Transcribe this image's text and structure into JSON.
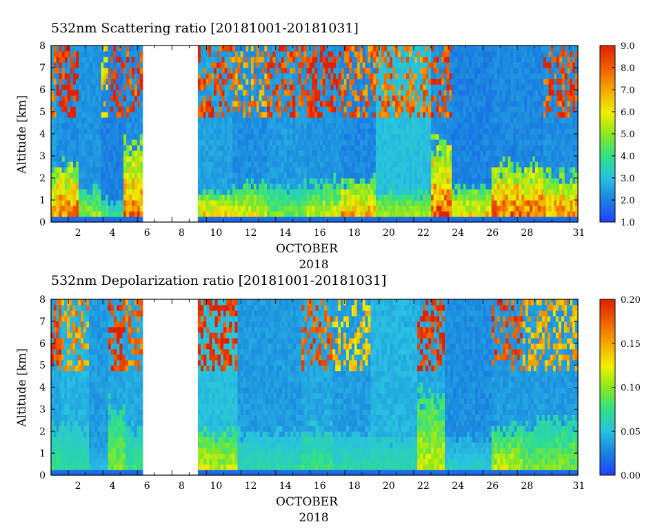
{
  "chart_data": [
    {
      "type": "heatmap",
      "title": "532nm Scattering ratio [20181001-20181031]",
      "ylabel": "Altitude [km]",
      "xlabel": "OCTOBER",
      "xlabel2": "2018",
      "xlim": [
        1,
        31.5
      ],
      "ylim": [
        0,
        8
      ],
      "x_ticks": [
        "2",
        "4",
        "6",
        "8",
        "10",
        "12",
        "14",
        "16",
        "18",
        "20",
        "22",
        "24",
        "26",
        "28",
        "31"
      ],
      "y_ticks": [
        "0",
        "1",
        "2",
        "3",
        "4",
        "5",
        "6",
        "7",
        "8"
      ],
      "colorbar": {
        "min": 1.0,
        "max": 9.0,
        "ticks": [
          "1.0",
          "2.0",
          "3.0",
          "4.0",
          "5.0",
          "6.0",
          "7.0",
          "8.0",
          "9.0"
        ]
      },
      "data_gap_days": [
        6.3,
        9.5
      ],
      "segments": [
        {
          "x0": 1.0,
          "x1": 1.3,
          "bg": 2.5,
          "pbl_top": 2.2,
          "pbl_val": 7.5,
          "cloud_top": 8,
          "cloud_val": 8.0
        },
        {
          "x0": 1.3,
          "x1": 2.6,
          "bg": 2.2,
          "pbl_top": 2.5,
          "pbl_val": 8.5,
          "cloud_top": 8,
          "cloud_val": 9.0
        },
        {
          "x0": 2.6,
          "x1": 3.9,
          "bg": 2.3,
          "pbl_top": 1.3,
          "pbl_val": 5.5,
          "cloud_top": 0,
          "cloud_val": 0
        },
        {
          "x0": 3.9,
          "x1": 4.3,
          "bg": 2.0,
          "pbl_top": 1.0,
          "pbl_val": 5.0,
          "cloud_top": 8,
          "cloud_val": 6.5
        },
        {
          "x0": 4.3,
          "x1": 5.2,
          "bg": 2.0,
          "pbl_top": 0.8,
          "pbl_val": 4.5,
          "cloud_top": 8,
          "cloud_val": 9.0
        },
        {
          "x0": 5.2,
          "x1": 6.3,
          "bg": 2.2,
          "pbl_top": 3.5,
          "pbl_val": 8.0,
          "cloud_top": 8,
          "cloud_val": 8.5
        },
        {
          "x0": 9.5,
          "x1": 11.5,
          "bg": 2.5,
          "pbl_top": 1.2,
          "pbl_val": 7.0,
          "cloud_top": 6,
          "cloud_val": 8.5
        },
        {
          "x0": 11.5,
          "x1": 13.5,
          "bg": 2.2,
          "pbl_top": 1.6,
          "pbl_val": 6.5,
          "cloud_top": 8,
          "cloud_val": 7.5
        },
        {
          "x0": 13.5,
          "x1": 15.8,
          "bg": 2.4,
          "pbl_top": 1.5,
          "pbl_val": 5.0,
          "cloud_top": 8,
          "cloud_val": 8.5
        },
        {
          "x0": 15.8,
          "x1": 17.8,
          "bg": 2.3,
          "pbl_top": 1.7,
          "pbl_val": 6.0,
          "cloud_top": 8,
          "cloud_val": 9.0
        },
        {
          "x0": 17.8,
          "x1": 19.8,
          "bg": 2.1,
          "pbl_top": 1.8,
          "pbl_val": 7.5,
          "cloud_top": 8,
          "cloud_val": 8.0
        },
        {
          "x0": 19.8,
          "x1": 23.0,
          "bg": 3.0,
          "pbl_top": 1.2,
          "pbl_val": 5.5,
          "cloud_top": 8,
          "cloud_val": 8.0
        },
        {
          "x0": 23.0,
          "x1": 24.2,
          "bg": 2.2,
          "pbl_top": 3.5,
          "pbl_val": 8.5,
          "cloud_top": 8,
          "cloud_val": 8.5
        },
        {
          "x0": 24.2,
          "x1": 26.5,
          "bg": 2.0,
          "pbl_top": 1.5,
          "pbl_val": 7.0,
          "cloud_top": 0,
          "cloud_val": 0
        },
        {
          "x0": 26.5,
          "x1": 29.5,
          "bg": 2.1,
          "pbl_top": 2.4,
          "pbl_val": 8.5,
          "cloud_top": 0,
          "cloud_val": 0
        },
        {
          "x0": 29.5,
          "x1": 31.5,
          "bg": 2.2,
          "pbl_top": 2.0,
          "pbl_val": 8.0,
          "cloud_top": 8,
          "cloud_val": 8.5
        }
      ]
    },
    {
      "type": "heatmap",
      "title": "532nm Depolarization ratio [20181001-20181031]",
      "ylabel": "Altitude [km]",
      "xlabel": "OCTOBER",
      "xlabel2": "2018",
      "xlim": [
        1,
        31.5
      ],
      "ylim": [
        0,
        8
      ],
      "x_ticks": [
        "2",
        "4",
        "6",
        "8",
        "10",
        "12",
        "14",
        "16",
        "18",
        "20",
        "22",
        "24",
        "26",
        "28",
        "31"
      ],
      "y_ticks": [
        "0",
        "1",
        "2",
        "3",
        "4",
        "5",
        "6",
        "7",
        "8"
      ],
      "colorbar": {
        "min": 0.0,
        "max": 0.2,
        "ticks": [
          "0.00",
          "0.05",
          "0.10",
          "0.15",
          "0.20"
        ]
      },
      "data_gap_days": [
        6.3,
        9.5
      ],
      "segments": [
        {
          "x0": 1.0,
          "x1": 1.6,
          "bg": 0.04,
          "pbl_top": 2.0,
          "pbl_val": 0.08,
          "cloud_top": 8,
          "cloud_val": 0.19
        },
        {
          "x0": 1.6,
          "x1": 3.2,
          "bg": 0.045,
          "pbl_top": 2.0,
          "pbl_val": 0.07,
          "cloud_top": 8,
          "cloud_val": 0.16
        },
        {
          "x0": 3.2,
          "x1": 4.3,
          "bg": 0.035,
          "pbl_top": 1.0,
          "pbl_val": 0.05,
          "cloud_top": 0,
          "cloud_val": 0
        },
        {
          "x0": 4.3,
          "x1": 5.3,
          "bg": 0.04,
          "pbl_top": 3.0,
          "pbl_val": 0.1,
          "cloud_top": 8,
          "cloud_val": 0.2
        },
        {
          "x0": 5.3,
          "x1": 6.3,
          "bg": 0.04,
          "pbl_top": 2.0,
          "pbl_val": 0.08,
          "cloud_top": 8,
          "cloud_val": 0.17
        },
        {
          "x0": 9.5,
          "x1": 11.8,
          "bg": 0.05,
          "pbl_top": 1.8,
          "pbl_val": 0.12,
          "cloud_top": 8,
          "cloud_val": 0.2
        },
        {
          "x0": 11.8,
          "x1": 15.5,
          "bg": 0.035,
          "pbl_top": 1.8,
          "pbl_val": 0.07,
          "cloud_top": 0,
          "cloud_val": 0
        },
        {
          "x0": 15.5,
          "x1": 17.3,
          "bg": 0.04,
          "pbl_top": 2.0,
          "pbl_val": 0.08,
          "cloud_top": 8,
          "cloud_val": 0.18
        },
        {
          "x0": 17.3,
          "x1": 19.5,
          "bg": 0.035,
          "pbl_top": 1.8,
          "pbl_val": 0.07,
          "cloud_top": 8,
          "cloud_val": 0.14
        },
        {
          "x0": 19.5,
          "x1": 22.2,
          "bg": 0.045,
          "pbl_top": 1.5,
          "pbl_val": 0.07,
          "cloud_top": 0,
          "cloud_val": 0
        },
        {
          "x0": 22.2,
          "x1": 23.8,
          "bg": 0.04,
          "pbl_top": 3.5,
          "pbl_val": 0.12,
          "cloud_top": 8,
          "cloud_val": 0.2
        },
        {
          "x0": 23.8,
          "x1": 26.5,
          "bg": 0.03,
          "pbl_top": 1.5,
          "pbl_val": 0.06,
          "cloud_top": 0,
          "cloud_val": 0
        },
        {
          "x0": 26.5,
          "x1": 28.3,
          "bg": 0.035,
          "pbl_top": 2.0,
          "pbl_val": 0.12,
          "cloud_top": 8,
          "cloud_val": 0.19
        },
        {
          "x0": 28.3,
          "x1": 31.5,
          "bg": 0.035,
          "pbl_top": 2.3,
          "pbl_val": 0.1,
          "cloud_top": 8,
          "cloud_val": 0.15
        }
      ]
    }
  ]
}
